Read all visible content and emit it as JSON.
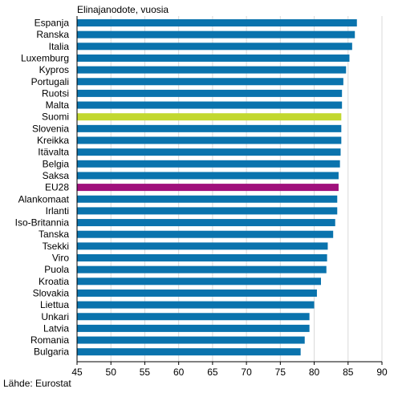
{
  "source": "Lähde: Eurostat",
  "colors": {
    "default": "#0a73ad",
    "highlight_suomi": "#c2d82f",
    "highlight_eu28": "#a0107c",
    "grid": "#d9d9d9",
    "axis": "#000000"
  },
  "chart_data": {
    "type": "bar",
    "orientation": "horizontal",
    "title": "Elinajanodote, vuosia",
    "xlabel": "",
    "ylabel": "",
    "xlim": [
      45,
      90
    ],
    "xticks": [
      45,
      50,
      55,
      60,
      65,
      70,
      75,
      80,
      85,
      90
    ],
    "grid": true,
    "categories": [
      "Espanja",
      "Ranska",
      "Italia",
      "Luxemburg",
      "Kypros",
      "Portugali",
      "Ruotsi",
      "Malta",
      "Suomi",
      "Slovenia",
      "Kreikka",
      "Itävalta",
      "Belgia",
      "Saksa",
      "EU28",
      "Alankomaat",
      "Irlanti",
      "Iso-Britannia",
      "Tanska",
      "Tsekki",
      "Viro",
      "Puola",
      "Kroatia",
      "Slovakia",
      "Liettua",
      "Unkari",
      "Latvia",
      "Romania",
      "Bulgaria"
    ],
    "values": [
      86.3,
      86.0,
      85.6,
      85.2,
      84.7,
      84.3,
      84.1,
      84.1,
      84.0,
      84.0,
      84.0,
      83.9,
      83.8,
      83.6,
      83.6,
      83.4,
      83.4,
      83.1,
      82.8,
      82.0,
      81.9,
      81.8,
      81.0,
      80.4,
      80.0,
      79.3,
      79.3,
      78.6,
      78.0
    ],
    "highlight": {
      "Suomi": "highlight_suomi",
      "EU28": "highlight_eu28"
    }
  }
}
